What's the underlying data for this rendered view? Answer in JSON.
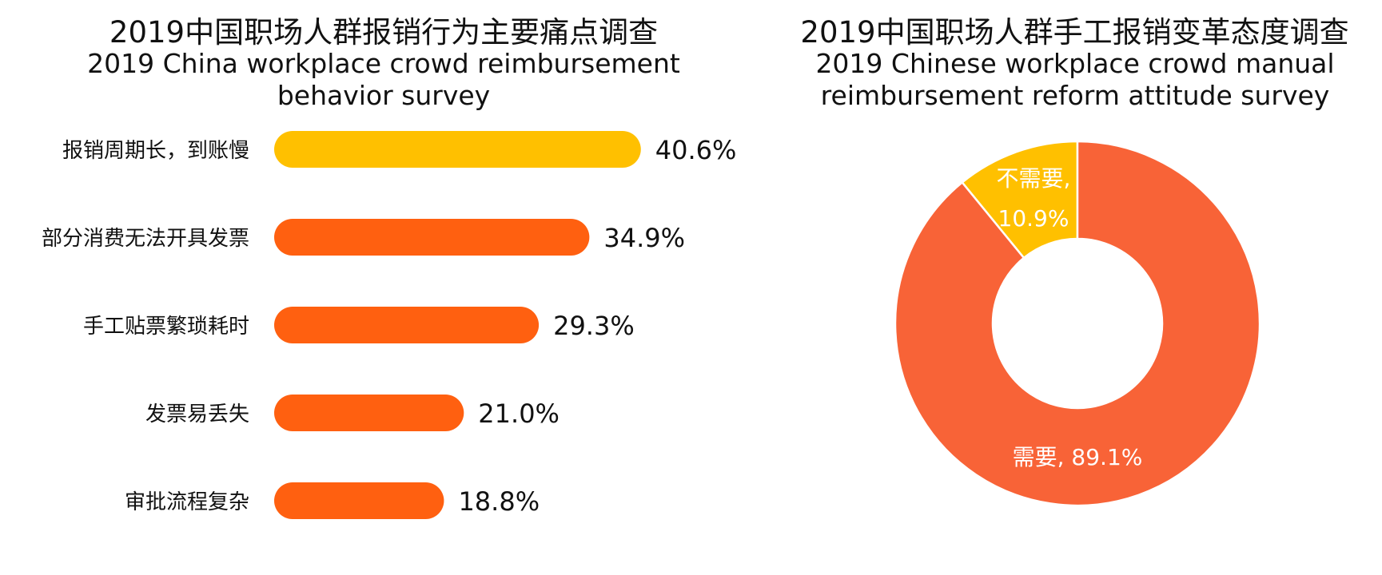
{
  "chart_data": [
    {
      "type": "bar",
      "orientation": "horizontal",
      "title": "2019中国职场人群报销行为主要痛点调查",
      "subtitle": "2019 China workplace crowd reimbursement behavior survey",
      "categories": [
        "报销周期长，到账慢",
        "部分消费无法开具发票",
        "手工贴票繁琐耗时",
        "发票易丢失",
        "审批流程复杂"
      ],
      "values": [
        40.6,
        34.9,
        29.3,
        21.0,
        18.8
      ],
      "value_labels": [
        "40.6%",
        "34.9%",
        "29.3%",
        "21.0%",
        "18.8%"
      ],
      "colors": [
        "#FFC000",
        "#FF6010",
        "#FF6010",
        "#FF6010",
        "#FF6010"
      ],
      "unit": "%"
    },
    {
      "type": "pie",
      "donut": true,
      "title": "2019中国职场人群手工报销变革态度调查",
      "subtitle": "2019 Chinese workplace crowd manual reimbursement reform attitude survey",
      "slices": [
        {
          "label": "需要, 89.1%",
          "value": 89.1,
          "color": "#F86337"
        },
        {
          "label_line1": "不需要,",
          "label_line2": "10.9%",
          "value": 10.9,
          "color": "#FFC000"
        }
      ]
    }
  ]
}
